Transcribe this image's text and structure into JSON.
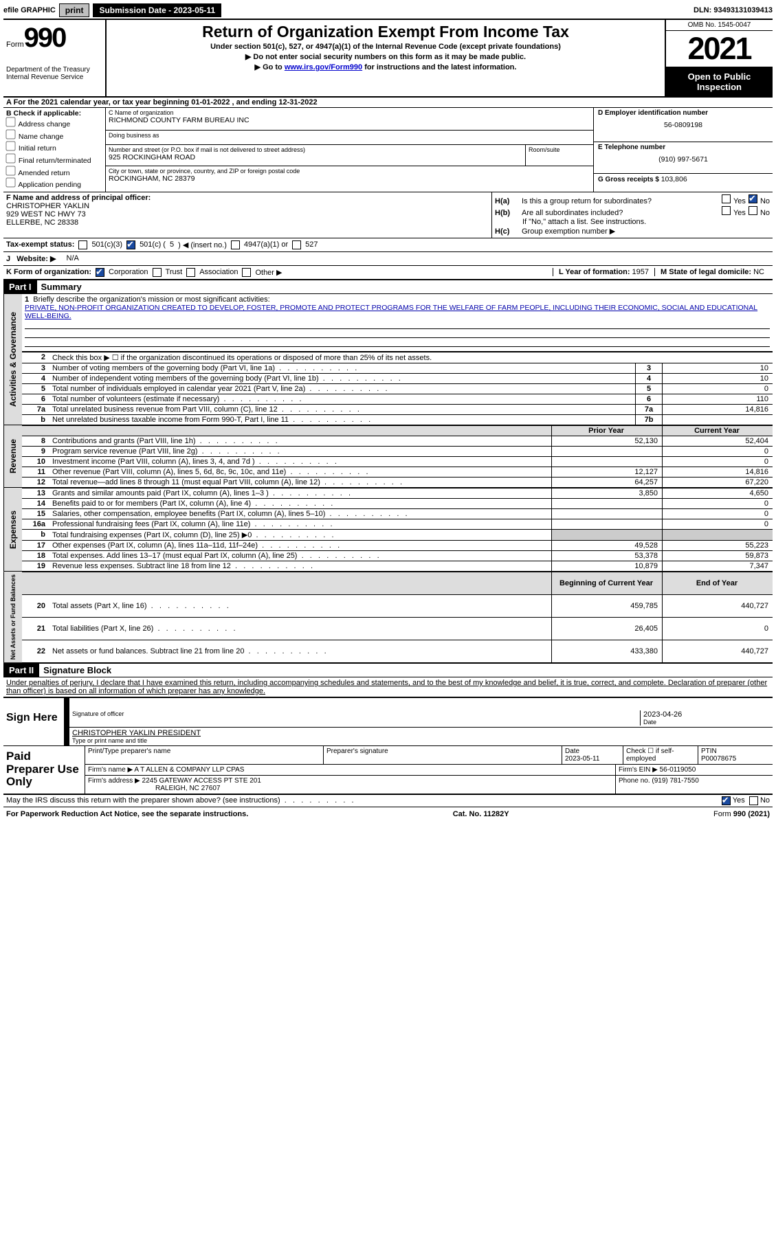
{
  "topbar": {
    "efile_label": "efile GRAPHIC",
    "print_btn": "print",
    "sub_date_label": "Submission Date - ",
    "sub_date": "2023-05-11",
    "dln_label": "DLN: ",
    "dln": "93493131039413"
  },
  "header": {
    "form_word": "Form",
    "form_num": "990",
    "dept": "Department of the Treasury",
    "irs": "Internal Revenue Service",
    "title": "Return of Organization Exempt From Income Tax",
    "sub1": "Under section 501(c), 527, or 4947(a)(1) of the Internal Revenue Code (except private foundations)",
    "sub2": "▶ Do not enter social security numbers on this form as it may be made public.",
    "sub3_pre": "▶ Go to ",
    "sub3_link": "www.irs.gov/Form990",
    "sub3_post": " for instructions and the latest information.",
    "omb": "OMB No. 1545-0047",
    "year": "2021",
    "open": "Open to Public Inspection"
  },
  "period": {
    "text_a": "A For the 2021 calendar year, or tax year beginning ",
    "begin": "01-01-2022",
    "mid": "   , and ending ",
    "end": "12-31-2022"
  },
  "blockB": {
    "title": "B Check if applicable:",
    "opts": [
      "Address change",
      "Name change",
      "Initial return",
      "Final return/terminated",
      "Amended return",
      "Application pending"
    ]
  },
  "blockC": {
    "name_lbl": "C Name of organization",
    "name": "RICHMOND COUNTY FARM BUREAU INC",
    "dba_lbl": "Doing business as",
    "addr_lbl": "Number and street (or P.O. box if mail is not delivered to street address)",
    "addr": "925 ROCKINGHAM ROAD",
    "suite_lbl": "Room/suite",
    "city_lbl": "City or town, state or province, country, and ZIP or foreign postal code",
    "city": "ROCKINGHAM, NC  28379"
  },
  "blockD": {
    "ein_lbl": "D Employer identification number",
    "ein": "56-0809198",
    "tel_lbl": "E Telephone number",
    "tel": "(910) 997-5671",
    "gross_lbl": "G Gross receipts $ ",
    "gross": "103,806"
  },
  "blockF": {
    "lbl": "F Name and address of principal officer:",
    "name": "CHRISTOPHER YAKLIN",
    "addr1": "929 WEST NC HWY 73",
    "addr2": "ELLERBE, NC  28338"
  },
  "blockH": {
    "ha_lbl": "H(a)",
    "ha_q": "Is this a group return for subordinates?",
    "hb_lbl": "H(b)",
    "hb_q": "Are all subordinates included?",
    "hb_note": "If \"No,\" attach a list. See instructions.",
    "hc_lbl": "H(c)",
    "hc_q": "Group exemption number ▶",
    "yes": "Yes",
    "no": "No"
  },
  "blockI": {
    "lbl": "Tax-exempt status:",
    "o1": "501(c)(3)",
    "o2a": "501(c) ( ",
    "o2_num": "5",
    "o2b": " ) ◀ (insert no.)",
    "o3": "4947(a)(1) or",
    "o4": "527"
  },
  "blockJ": {
    "lbl": "Website: ▶",
    "val": "N/A"
  },
  "blockK": {
    "lbl": "K Form of organization:",
    "opts": [
      "Corporation",
      "Trust",
      "Association",
      "Other ▶"
    ],
    "l_lbl": "L Year of formation: ",
    "l_val": "1957",
    "m_lbl": "M State of legal domicile: ",
    "m_val": "NC"
  },
  "partI": {
    "hdr": "Part I",
    "title": "Summary",
    "mission_lbl": "Briefly describe the organization's mission or most significant activities:",
    "mission": "PRIVATE, NON-PROFIT ORGANIZATION CREATED TO DEVELOP, FOSTER, PROMOTE AND PROTECT PROGRAMS FOR THE WELFARE OF FARM PEOPLE, INCLUDING THEIR ECONOMIC, SOCIAL AND EDUCATIONAL WELL-BEING.",
    "line2": "Check this box ▶ ☐  if the organization discontinued its operations or disposed of more than 25% of its net assets.",
    "rows_single": [
      {
        "n": "3",
        "t": "Number of voting members of the governing body (Part VI, line 1a)",
        "b": "3",
        "v": "10"
      },
      {
        "n": "4",
        "t": "Number of independent voting members of the governing body (Part VI, line 1b)",
        "b": "4",
        "v": "10"
      },
      {
        "n": "5",
        "t": "Total number of individuals employed in calendar year 2021 (Part V, line 2a)",
        "b": "5",
        "v": "0"
      },
      {
        "n": "6",
        "t": "Total number of volunteers (estimate if necessary)",
        "b": "6",
        "v": "110"
      },
      {
        "n": "7a",
        "t": "Total unrelated business revenue from Part VIII, column (C), line 12",
        "b": "7a",
        "v": "14,816"
      },
      {
        "n": "b",
        "t": "Net unrelated business taxable income from Form 990-T, Part I, line 11",
        "b": "7b",
        "v": ""
      }
    ],
    "col_hdr_prior": "Prior Year",
    "col_hdr_curr": "Current Year",
    "tab_act": "Activities & Governance",
    "tab_rev": "Revenue",
    "tab_exp": "Expenses",
    "tab_net": "Net Assets or Fund Balances",
    "rev_rows": [
      {
        "n": "8",
        "t": "Contributions and grants (Part VIII, line 1h)",
        "p": "52,130",
        "c": "52,404"
      },
      {
        "n": "9",
        "t": "Program service revenue (Part VIII, line 2g)",
        "p": "",
        "c": "0"
      },
      {
        "n": "10",
        "t": "Investment income (Part VIII, column (A), lines 3, 4, and 7d )",
        "p": "",
        "c": "0"
      },
      {
        "n": "11",
        "t": "Other revenue (Part VIII, column (A), lines 5, 6d, 8c, 9c, 10c, and 11e)",
        "p": "12,127",
        "c": "14,816"
      },
      {
        "n": "12",
        "t": "Total revenue—add lines 8 through 11 (must equal Part VIII, column (A), line 12)",
        "p": "64,257",
        "c": "67,220"
      }
    ],
    "exp_rows": [
      {
        "n": "13",
        "t": "Grants and similar amounts paid (Part IX, column (A), lines 1–3 )",
        "p": "3,850",
        "c": "4,650"
      },
      {
        "n": "14",
        "t": "Benefits paid to or for members (Part IX, column (A), line 4)",
        "p": "",
        "c": "0"
      },
      {
        "n": "15",
        "t": "Salaries, other compensation, employee benefits (Part IX, column (A), lines 5–10)",
        "p": "",
        "c": "0"
      },
      {
        "n": "16a",
        "t": "Professional fundraising fees (Part IX, column (A), line 11e)",
        "p": "",
        "c": "0"
      },
      {
        "n": "b",
        "t": "Total fundraising expenses (Part IX, column (D), line 25) ▶0",
        "p": "grey",
        "c": "grey"
      },
      {
        "n": "17",
        "t": "Other expenses (Part IX, column (A), lines 11a–11d, 11f–24e)",
        "p": "49,528",
        "c": "55,223"
      },
      {
        "n": "18",
        "t": "Total expenses. Add lines 13–17 (must equal Part IX, column (A), line 25)",
        "p": "53,378",
        "c": "59,873"
      },
      {
        "n": "19",
        "t": "Revenue less expenses. Subtract line 18 from line 12",
        "p": "10,879",
        "c": "7,347"
      }
    ],
    "net_hdr_beg": "Beginning of Current Year",
    "net_hdr_end": "End of Year",
    "net_rows": [
      {
        "n": "20",
        "t": "Total assets (Part X, line 16)",
        "p": "459,785",
        "c": "440,727"
      },
      {
        "n": "21",
        "t": "Total liabilities (Part X, line 26)",
        "p": "26,405",
        "c": "0"
      },
      {
        "n": "22",
        "t": "Net assets or fund balances. Subtract line 21 from line 20",
        "p": "433,380",
        "c": "440,727"
      }
    ]
  },
  "partII": {
    "hdr": "Part II",
    "title": "Signature Block",
    "declaration": "Under penalties of perjury, I declare that I have examined this return, including accompanying schedules and statements, and to the best of my knowledge and belief, it is true, correct, and complete. Declaration of preparer (other than officer) is based on all information of which preparer has any knowledge.",
    "sign_here": "Sign Here",
    "sig_of_officer": "Signature of officer",
    "date_lbl": "Date",
    "sig_date": "2023-04-26",
    "officer_name": "CHRISTOPHER YAKLIN  PRESIDENT",
    "type_lbl": "Type or print name and title",
    "paid": "Paid Preparer Use Only",
    "prep_name_lbl": "Print/Type preparer's name",
    "prep_sig_lbl": "Preparer's signature",
    "prep_date_lbl": "Date",
    "prep_date": "2023-05-11",
    "check_self": "Check ☐ if self-employed",
    "ptin_lbl": "PTIN",
    "ptin": "P00078675",
    "firm_name_lbl": "Firm's name    ▶ ",
    "firm_name": "A T ALLEN & COMPANY LLP CPAS",
    "firm_ein_lbl": "Firm's EIN ▶ ",
    "firm_ein": "56-0119050",
    "firm_addr_lbl": "Firm's address ▶ ",
    "firm_addr1": "2245 GATEWAY ACCESS PT STE 201",
    "firm_addr2": "RALEIGH, NC  27607",
    "phone_lbl": "Phone no. ",
    "phone": "(919) 781-7550",
    "discuss": "May the IRS discuss this return with the preparer shown above? (see instructions)",
    "yes": "Yes",
    "no": "No"
  },
  "footer": {
    "paperwork": "For Paperwork Reduction Act Notice, see the separate instructions.",
    "cat": "Cat. No. 11282Y",
    "form": "Form 990 (2021)"
  }
}
